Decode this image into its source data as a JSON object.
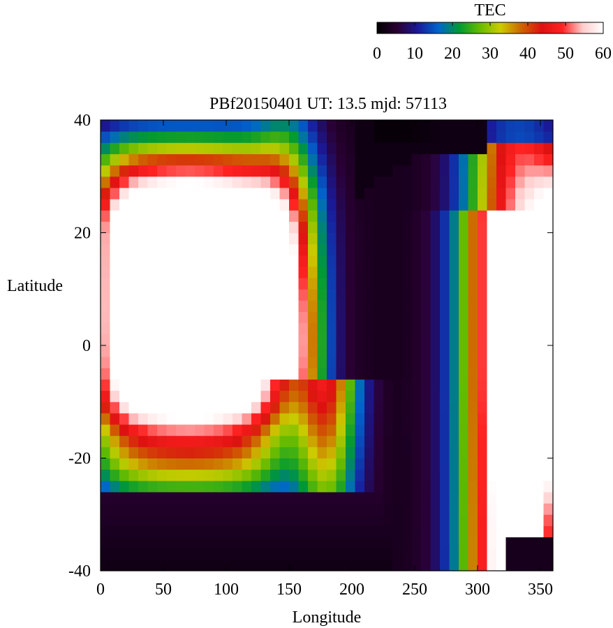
{
  "chart_data": {
    "type": "heatmap",
    "title": "PBf20150401  UT: 13.5  mjd: 57113",
    "xlabel": "Longitude",
    "ylabel": "Latitude",
    "xlim": [
      0,
      360
    ],
    "ylim": [
      -40,
      40
    ],
    "x_ticks": [
      "0",
      "50",
      "100",
      "150",
      "200",
      "250",
      "300",
      "350"
    ],
    "y_ticks": [
      "-40",
      "-20",
      "0",
      "20",
      "40"
    ],
    "colorbar": {
      "label": "TEC",
      "range": [
        0,
        60
      ],
      "ticks": [
        "0",
        "10",
        "20",
        "30",
        "40",
        "50",
        "60"
      ],
      "colors": [
        "#000000",
        "#2a0033",
        "#1a1a99",
        "#0066cc",
        "#009933",
        "#66bb00",
        "#cccc00",
        "#cc6600",
        "#dd1111",
        "#ff2222",
        "#ffcccc",
        "#ffffff"
      ]
    }
  }
}
